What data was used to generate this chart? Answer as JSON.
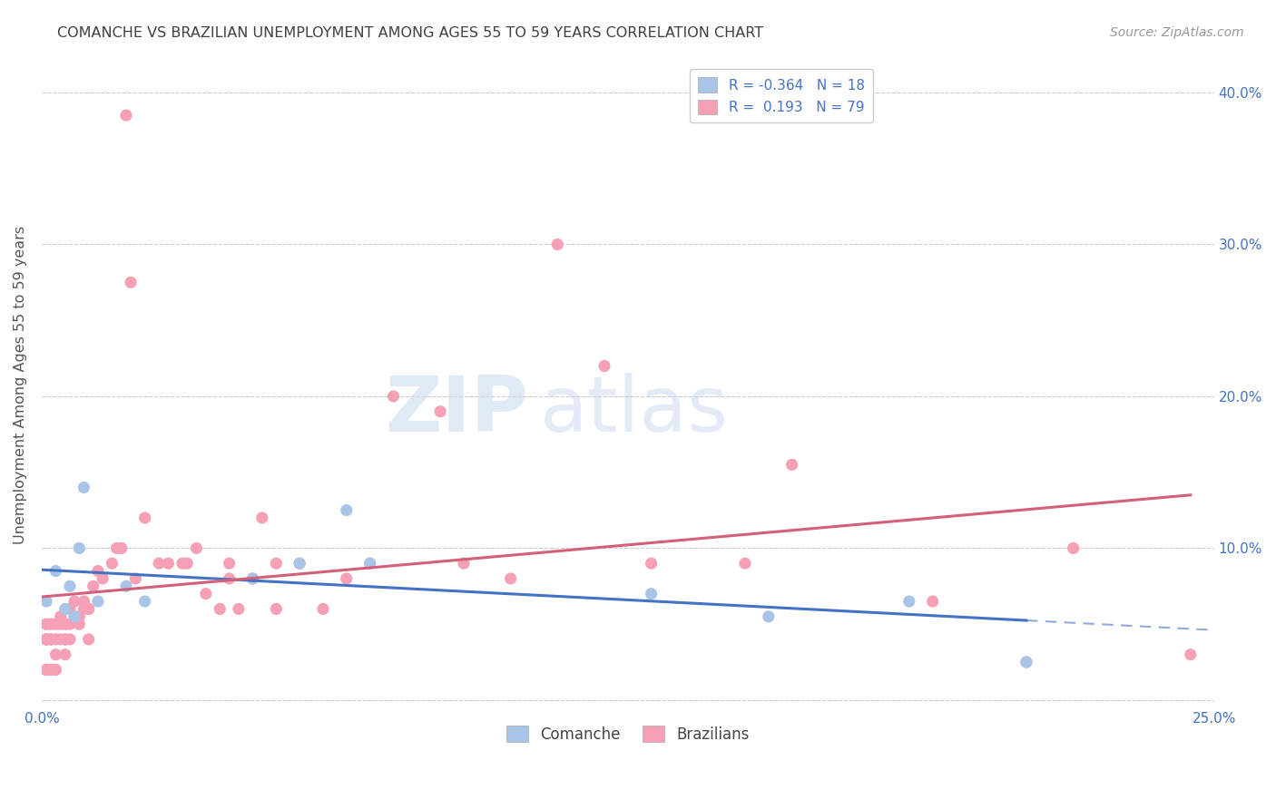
{
  "title": "COMANCHE VS BRAZILIAN UNEMPLOYMENT AMONG AGES 55 TO 59 YEARS CORRELATION CHART",
  "source": "Source: ZipAtlas.com",
  "ylabel": "Unemployment Among Ages 55 to 59 years",
  "xlim": [
    0.0,
    0.25
  ],
  "ylim": [
    -0.005,
    0.42
  ],
  "comanche_R": -0.364,
  "comanche_N": 18,
  "brazilian_R": 0.193,
  "brazilian_N": 79,
  "comanche_color": "#a8c5e8",
  "brazilian_color": "#f5a0b5",
  "trend_comanche_color": "#4472c4",
  "trend_brazilian_color": "#d45f7a",
  "watermark_zip": "ZIP",
  "watermark_atlas": "atlas",
  "background_color": "#ffffff",
  "grid_color": "#cccccc",
  "title_color": "#404040",
  "axis_label_color": "#4472c4",
  "comanche_x": [
    0.001,
    0.003,
    0.005,
    0.006,
    0.007,
    0.008,
    0.009,
    0.012,
    0.018,
    0.022,
    0.045,
    0.055,
    0.065,
    0.07,
    0.13,
    0.155,
    0.185,
    0.21
  ],
  "comanche_y": [
    0.065,
    0.085,
    0.06,
    0.075,
    0.055,
    0.1,
    0.14,
    0.065,
    0.075,
    0.065,
    0.08,
    0.09,
    0.125,
    0.09,
    0.07,
    0.055,
    0.065,
    0.025
  ],
  "brazilian_x": [
    0.001,
    0.001,
    0.001,
    0.001,
    0.001,
    0.001,
    0.001,
    0.001,
    0.002,
    0.002,
    0.002,
    0.002,
    0.002,
    0.002,
    0.003,
    0.003,
    0.003,
    0.003,
    0.004,
    0.004,
    0.004,
    0.005,
    0.005,
    0.005,
    0.005,
    0.005,
    0.006,
    0.006,
    0.006,
    0.007,
    0.007,
    0.008,
    0.008,
    0.009,
    0.009,
    0.01,
    0.01,
    0.01,
    0.011,
    0.012,
    0.013,
    0.015,
    0.016,
    0.017,
    0.018,
    0.019,
    0.02,
    0.022,
    0.025,
    0.027,
    0.03,
    0.031,
    0.033,
    0.035,
    0.038,
    0.04,
    0.04,
    0.042,
    0.045,
    0.047,
    0.05,
    0.05,
    0.055,
    0.06,
    0.065,
    0.07,
    0.075,
    0.085,
    0.09,
    0.1,
    0.11,
    0.12,
    0.13,
    0.15,
    0.16,
    0.19,
    0.21,
    0.22,
    0.245
  ],
  "brazilian_y": [
    0.04,
    0.04,
    0.04,
    0.04,
    0.05,
    0.05,
    0.02,
    0.02,
    0.04,
    0.04,
    0.05,
    0.05,
    0.02,
    0.02,
    0.05,
    0.04,
    0.03,
    0.02,
    0.055,
    0.05,
    0.04,
    0.05,
    0.05,
    0.04,
    0.04,
    0.03,
    0.06,
    0.05,
    0.04,
    0.065,
    0.055,
    0.055,
    0.05,
    0.065,
    0.06,
    0.06,
    0.06,
    0.04,
    0.075,
    0.085,
    0.08,
    0.09,
    0.1,
    0.1,
    0.385,
    0.275,
    0.08,
    0.12,
    0.09,
    0.09,
    0.09,
    0.09,
    0.1,
    0.07,
    0.06,
    0.09,
    0.08,
    0.06,
    0.08,
    0.12,
    0.09,
    0.06,
    0.09,
    0.06,
    0.08,
    0.09,
    0.2,
    0.19,
    0.09,
    0.08,
    0.3,
    0.22,
    0.09,
    0.09,
    0.155,
    0.065,
    0.025,
    0.1,
    0.03
  ]
}
